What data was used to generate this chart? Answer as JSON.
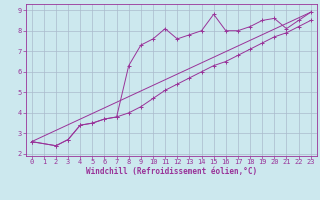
{
  "background_color": "#cce8ee",
  "line_color": "#993399",
  "grid_color": "#aabbcc",
  "xlabel": "Windchill (Refroidissement éolien,°C)",
  "xlabel_fontsize": 5.5,
  "tick_fontsize": 5,
  "xlim": [
    -0.5,
    23.5
  ],
  "ylim": [
    1.9,
    9.3
  ],
  "xticks": [
    0,
    1,
    2,
    3,
    4,
    5,
    6,
    7,
    8,
    9,
    10,
    11,
    12,
    13,
    14,
    15,
    16,
    17,
    18,
    19,
    20,
    21,
    22,
    23
  ],
  "yticks": [
    2,
    3,
    4,
    5,
    6,
    7,
    8,
    9
  ],
  "series1_x": [
    0,
    2,
    3,
    4,
    5,
    6,
    7,
    8,
    9,
    10,
    11,
    12,
    13,
    14,
    15,
    16,
    17,
    18,
    19,
    20,
    21,
    22,
    23
  ],
  "series1_y": [
    2.6,
    2.4,
    2.7,
    3.4,
    3.5,
    3.7,
    3.8,
    6.3,
    7.3,
    7.6,
    8.1,
    7.6,
    7.8,
    8.0,
    8.8,
    8.0,
    8.0,
    8.2,
    8.5,
    8.6,
    8.1,
    8.5,
    8.9
  ],
  "series2_x": [
    0,
    2,
    3,
    4,
    5,
    6,
    7,
    8,
    9,
    10,
    11,
    12,
    13,
    14,
    15,
    16,
    17,
    18,
    19,
    20,
    21,
    22,
    23
  ],
  "series2_y": [
    2.6,
    2.4,
    2.7,
    3.4,
    3.5,
    3.7,
    3.8,
    4.0,
    4.3,
    4.7,
    5.1,
    5.4,
    5.7,
    6.0,
    6.3,
    6.5,
    6.8,
    7.1,
    7.4,
    7.7,
    7.9,
    8.2,
    8.5
  ],
  "series3_x": [
    0,
    23
  ],
  "series3_y": [
    2.6,
    8.9
  ]
}
